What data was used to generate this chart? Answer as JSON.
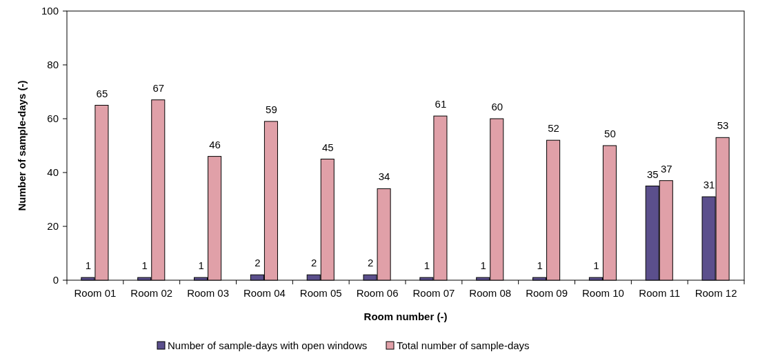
{
  "chart_data": {
    "type": "bar",
    "xlabel": "Room number (-)",
    "ylabel": "Number of sample-days (-)",
    "categories": [
      "Room 01",
      "Room 02",
      "Room 03",
      "Room 04",
      "Room 05",
      "Room 06",
      "Room 07",
      "Room 08",
      "Room 09",
      "Room 10",
      "Room 11",
      "Room 12"
    ],
    "series": [
      {
        "name": "Number of sample-days with open windows",
        "color": "#5b4f8c",
        "values": [
          1,
          1,
          1,
          2,
          2,
          2,
          1,
          1,
          1,
          1,
          35,
          31
        ]
      },
      {
        "name": "Total number of sample-days",
        "color": "#e0a0a8",
        "values": [
          65,
          67,
          46,
          59,
          45,
          34,
          61,
          60,
          52,
          50,
          37,
          53
        ]
      }
    ],
    "ylim": [
      0,
      100
    ],
    "yticks": [
      0,
      20,
      40,
      60,
      80,
      100
    ],
    "data_labels": true,
    "legend": "bottom",
    "grid": false
  }
}
